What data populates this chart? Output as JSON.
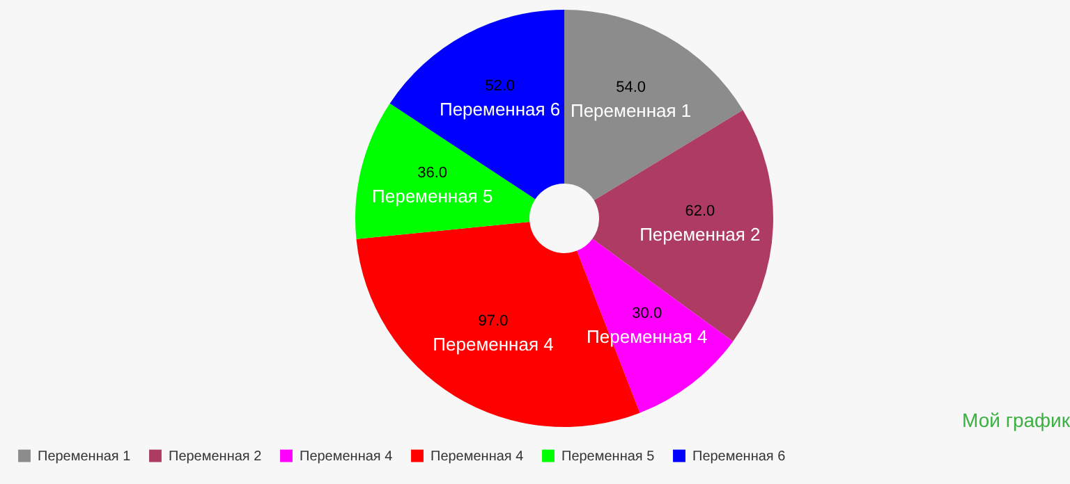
{
  "chart_data": {
    "type": "donut",
    "title": "Мой график",
    "categories": [
      "Переменная 1",
      "Переменная 2",
      "Переменная 4",
      "Переменная 4",
      "Переменная 5",
      "Переменная 6"
    ],
    "values": [
      54,
      62,
      30,
      97,
      36,
      52
    ],
    "colors": [
      "#8c8c8c",
      "#ad3b63",
      "#ff00ff",
      "#ff0000",
      "#00ff00",
      "#0000ff"
    ],
    "value_labels": [
      "54.0",
      "62.0",
      "30.0",
      "97.0",
      "36.0",
      "52.0"
    ],
    "legend": "bottom left"
  }
}
